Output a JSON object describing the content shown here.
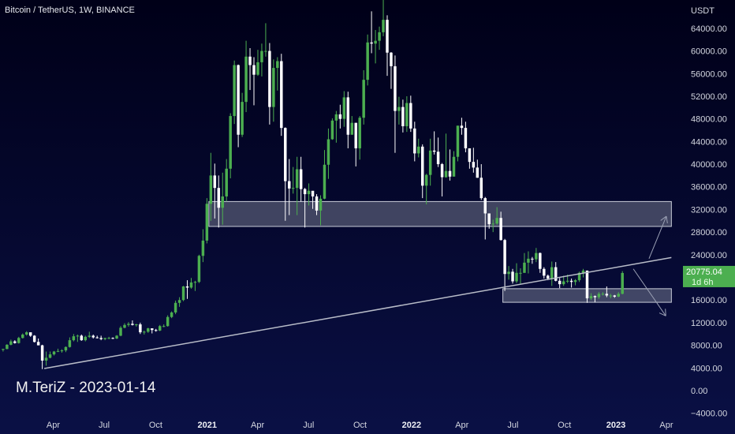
{
  "header": {
    "title": "Bitcoin / TetherUS, 1W, BINANCE"
  },
  "watermark": "M.TeriZ - 2023-01-14",
  "colors": {
    "up": "#4caf50",
    "down": "#ffffff",
    "background": "#060a2c",
    "zone_fill": "#8a8ea0",
    "line": "#b8bcc8"
  },
  "chart_data": {
    "type": "candlestick",
    "y_axis": {
      "label": "USDT",
      "ylim": [
        -4600,
        69000
      ],
      "ticks": [
        -4000,
        0,
        4000,
        8000,
        12000,
        16000,
        20000,
        24000,
        28000,
        32000,
        36000,
        40000,
        44000,
        48000,
        52000,
        56000,
        60000,
        64000
      ],
      "tick_labels": [
        "−4000.00",
        "0.00",
        "4000.00",
        "8000.00",
        "12000.00",
        "16000.00",
        "20000.00",
        "24000.00",
        "28000.00",
        "32000.00",
        "36000.00",
        "40000.00",
        "44000.00",
        "48000.00",
        "52000.00",
        "56000.00",
        "60000.00",
        "64000.00"
      ]
    },
    "x_axis": {
      "range": [
        "2019-12-28",
        "2023-04-25"
      ],
      "ticks": [
        {
          "date": "2020-04-01",
          "label": "Apr",
          "bold": false
        },
        {
          "date": "2020-07-01",
          "label": "Jul",
          "bold": false
        },
        {
          "date": "2020-10-01",
          "label": "Oct",
          "bold": false
        },
        {
          "date": "2021-01-01",
          "label": "2021",
          "bold": true
        },
        {
          "date": "2021-04-01",
          "label": "Apr",
          "bold": false
        },
        {
          "date": "2021-07-01",
          "label": "Jul",
          "bold": false
        },
        {
          "date": "2021-10-01",
          "label": "Oct",
          "bold": false
        },
        {
          "date": "2022-01-01",
          "label": "2022",
          "bold": true
        },
        {
          "date": "2022-04-01",
          "label": "Apr",
          "bold": false
        },
        {
          "date": "2022-07-01",
          "label": "Jul",
          "bold": false
        },
        {
          "date": "2022-10-01",
          "label": "Oct",
          "bold": false
        },
        {
          "date": "2023-01-01",
          "label": "2023",
          "bold": true
        },
        {
          "date": "2023-04-01",
          "label": "Apr",
          "bold": false
        }
      ]
    },
    "last_price": {
      "value": 20775.04,
      "label": "20775.04",
      "countdown": "1d 6h"
    },
    "zones": [
      {
        "from": "2021-01-04",
        "to": "2023-04-10",
        "low": 29000,
        "high": 33400
      },
      {
        "from": "2022-06-13",
        "to": "2023-04-10",
        "low": 15600,
        "high": 18000
      }
    ],
    "trendline": {
      "from": [
        "2020-03-16",
        3900
      ],
      "to": [
        "2023-04-10",
        23500
      ]
    },
    "arrows": [
      {
        "from": [
          "2023-03-01",
          23300
        ],
        "to": [
          "2023-04-01",
          30800
        ]
      },
      {
        "from": [
          "2023-02-01",
          21500
        ],
        "to": [
          "2023-03-31",
          13200
        ]
      }
    ],
    "candles": [
      [
        "2019-12-30",
        7200,
        7400,
        6900,
        7350
      ],
      [
        "2020-01-06",
        7350,
        8200,
        7300,
        8100
      ],
      [
        "2020-01-13",
        8100,
        9000,
        8000,
        8700
      ],
      [
        "2020-01-20",
        8700,
        8900,
        8300,
        8400
      ],
      [
        "2020-01-27",
        8400,
        9500,
        8300,
        9300
      ],
      [
        "2020-02-03",
        9300,
        10100,
        9200,
        9900
      ],
      [
        "2020-02-10",
        9900,
        10500,
        9700,
        10300
      ],
      [
        "2020-02-17",
        10300,
        10200,
        9500,
        9700
      ],
      [
        "2020-02-24",
        9700,
        9800,
        8500,
        8600
      ],
      [
        "2020-03-02",
        8600,
        9200,
        8000,
        8000
      ],
      [
        "2020-03-09",
        8000,
        8100,
        3800,
        5300
      ],
      [
        "2020-03-16",
        5300,
        6900,
        4400,
        5800
      ],
      [
        "2020-03-23",
        5800,
        6900,
        5700,
        6400
      ],
      [
        "2020-03-30",
        6400,
        7000,
        6200,
        6900
      ],
      [
        "2020-04-06",
        6900,
        7400,
        6800,
        7000
      ],
      [
        "2020-04-13",
        7000,
        7300,
        6700,
        7100
      ],
      [
        "2020-04-20",
        7100,
        7800,
        6800,
        7700
      ],
      [
        "2020-04-27",
        7700,
        9400,
        7600,
        8900
      ],
      [
        "2020-05-04",
        8900,
        10000,
        8700,
        9600
      ],
      [
        "2020-05-11",
        9600,
        9900,
        8600,
        9700
      ],
      [
        "2020-05-18",
        9700,
        9900,
        8800,
        8900
      ],
      [
        "2020-05-25",
        8900,
        9700,
        8700,
        9500
      ],
      [
        "2020-06-01",
        9500,
        10400,
        9300,
        9700
      ],
      [
        "2020-06-08",
        9700,
        9900,
        9200,
        9400
      ],
      [
        "2020-06-15",
        9400,
        9700,
        9200,
        9300
      ],
      [
        "2020-06-22",
        9300,
        9700,
        8900,
        9100
      ],
      [
        "2020-06-29",
        9100,
        9300,
        8900,
        9300
      ],
      [
        "2020-07-06",
        9300,
        9500,
        9100,
        9300
      ],
      [
        "2020-07-13",
        9300,
        9400,
        9100,
        9200
      ],
      [
        "2020-07-20",
        9200,
        9800,
        9100,
        9700
      ],
      [
        "2020-07-27",
        9700,
        11400,
        9600,
        11100
      ],
      [
        "2020-08-03",
        11100,
        11900,
        11000,
        11600
      ],
      [
        "2020-08-10",
        11600,
        12100,
        11300,
        11800
      ],
      [
        "2020-08-17",
        11800,
        12400,
        11500,
        11600
      ],
      [
        "2020-08-24",
        11600,
        11800,
        11300,
        11700
      ],
      [
        "2020-08-31",
        11700,
        12000,
        10000,
        10300
      ],
      [
        "2020-09-07",
        10300,
        10600,
        9900,
        10400
      ],
      [
        "2020-09-14",
        10400,
        11100,
        10200,
        11000
      ],
      [
        "2020-09-21",
        11000,
        11000,
        10100,
        10700
      ],
      [
        "2020-09-28",
        10700,
        10900,
        10400,
        10600
      ],
      [
        "2020-10-05",
        10600,
        11600,
        10500,
        11400
      ],
      [
        "2020-10-12",
        11400,
        11700,
        11200,
        11400
      ],
      [
        "2020-10-19",
        11400,
        13300,
        11300,
        13000
      ],
      [
        "2020-10-26",
        13000,
        14000,
        12800,
        13800
      ],
      [
        "2020-11-02",
        13800,
        15900,
        13500,
        15500
      ],
      [
        "2020-11-09",
        15500,
        16500,
        14800,
        16000
      ],
      [
        "2020-11-16",
        16000,
        18500,
        15800,
        18400
      ],
      [
        "2020-11-23",
        18400,
        19500,
        16200,
        18200
      ],
      [
        "2020-11-30",
        18200,
        19900,
        18000,
        19100
      ],
      [
        "2020-12-07",
        19100,
        19400,
        17600,
        19200
      ],
      [
        "2020-12-14",
        19200,
        24000,
        19000,
        23800
      ],
      [
        "2020-12-21",
        23800,
        28500,
        22700,
        26500
      ],
      [
        "2020-12-28",
        26500,
        34000,
        26000,
        33000
      ],
      [
        "2021-01-04",
        33000,
        42000,
        30000,
        38000
      ],
      [
        "2021-01-11",
        38000,
        40100,
        30400,
        35800
      ],
      [
        "2021-01-18",
        35800,
        38000,
        28800,
        32300
      ],
      [
        "2021-01-25",
        32300,
        38500,
        29300,
        34300
      ],
      [
        "2021-02-01",
        34300,
        40900,
        33400,
        39200
      ],
      [
        "2021-02-08",
        39200,
        49000,
        37500,
        48500
      ],
      [
        "2021-02-15",
        48500,
        58300,
        47100,
        57500
      ],
      [
        "2021-02-22",
        57500,
        57600,
        43000,
        45200
      ],
      [
        "2021-03-01",
        45200,
        52600,
        44800,
        51000
      ],
      [
        "2021-03-08",
        51000,
        61800,
        49200,
        59000
      ],
      [
        "2021-03-15",
        59000,
        60500,
        53100,
        57500
      ],
      [
        "2021-03-22",
        57500,
        58900,
        50400,
        55800
      ],
      [
        "2021-03-29",
        55800,
        60200,
        55600,
        58000
      ],
      [
        "2021-04-05",
        58000,
        61300,
        55500,
        60000
      ],
      [
        "2021-04-12",
        60000,
        64900,
        59000,
        60000
      ],
      [
        "2021-04-19",
        60000,
        61400,
        47000,
        50100
      ],
      [
        "2021-04-26",
        50100,
        58500,
        47500,
        57000
      ],
      [
        "2021-05-03",
        57000,
        58900,
        53000,
        58200
      ],
      [
        "2021-05-10",
        58200,
        59500,
        45000,
        46400
      ],
      [
        "2021-05-17",
        46400,
        46500,
        30000,
        37000
      ],
      [
        "2021-05-24",
        37000,
        40900,
        31000,
        35700
      ],
      [
        "2021-05-31",
        35700,
        39500,
        34800,
        35800
      ],
      [
        "2021-06-07",
        35800,
        41300,
        31000,
        39100
      ],
      [
        "2021-06-14",
        39100,
        41300,
        33400,
        35600
      ],
      [
        "2021-06-21",
        35600,
        35800,
        28800,
        34700
      ],
      [
        "2021-06-28",
        34700,
        36600,
        32700,
        35300
      ],
      [
        "2021-07-05",
        35300,
        35100,
        32100,
        34300
      ],
      [
        "2021-07-12",
        34300,
        34700,
        31000,
        31800
      ],
      [
        "2021-07-19",
        31800,
        34500,
        29200,
        33900
      ],
      [
        "2021-07-26",
        33900,
        42500,
        33800,
        39900
      ],
      [
        "2021-08-02",
        39900,
        46300,
        37400,
        44400
      ],
      [
        "2021-08-09",
        44400,
        48100,
        44300,
        47700
      ],
      [
        "2021-08-16",
        47700,
        49400,
        43800,
        48800
      ],
      [
        "2021-08-23",
        48800,
        50500,
        46300,
        48000
      ],
      [
        "2021-08-30",
        48000,
        52900,
        46600,
        51800
      ],
      [
        "2021-09-06",
        51800,
        52800,
        42800,
        45200
      ],
      [
        "2021-09-13",
        45200,
        48500,
        45200,
        47300
      ],
      [
        "2021-09-20",
        47300,
        47300,
        39600,
        42800
      ],
      [
        "2021-09-27",
        42800,
        48500,
        40800,
        48200
      ],
      [
        "2021-10-04",
        48200,
        56600,
        47000,
        54900
      ],
      [
        "2021-10-11",
        54900,
        62900,
        53900,
        61500
      ],
      [
        "2021-10-18",
        61500,
        67000,
        59600,
        61300
      ],
      [
        "2021-10-25",
        61300,
        63700,
        57800,
        61800
      ],
      [
        "2021-11-01",
        61800,
        64300,
        60200,
        63300
      ],
      [
        "2021-11-08",
        63300,
        69000,
        62600,
        65500
      ],
      [
        "2021-11-15",
        65500,
        66300,
        55600,
        59700
      ],
      [
        "2021-11-22",
        59700,
        59800,
        53300,
        57300
      ],
      [
        "2021-11-29",
        57300,
        59200,
        42000,
        49400
      ],
      [
        "2021-12-06",
        49400,
        51900,
        47000,
        50100
      ],
      [
        "2021-12-13",
        50100,
        51400,
        45600,
        46700
      ],
      [
        "2021-12-20",
        46700,
        52000,
        45700,
        50800
      ],
      [
        "2021-12-27",
        50800,
        52100,
        45700,
        46300
      ],
      [
        "2022-01-03",
        46300,
        47500,
        40500,
        41900
      ],
      [
        "2022-01-10",
        41900,
        44500,
        41200,
        43100
      ],
      [
        "2022-01-17",
        43100,
        43500,
        34000,
        36200
      ],
      [
        "2022-01-24",
        36200,
        38300,
        32900,
        38100
      ],
      [
        "2022-01-31",
        38100,
        44500,
        36200,
        42400
      ],
      [
        "2022-02-07",
        42400,
        45800,
        41700,
        42200
      ],
      [
        "2022-02-14",
        42200,
        44700,
        39500,
        40000
      ],
      [
        "2022-02-21",
        40000,
        40200,
        34300,
        37700
      ],
      [
        "2022-02-28",
        37700,
        45400,
        37600,
        38800
      ],
      [
        "2022-03-07",
        38800,
        42600,
        37100,
        37800
      ],
      [
        "2022-03-14",
        37800,
        42300,
        38100,
        41300
      ],
      [
        "2022-03-21",
        41300,
        46800,
        40500,
        46800
      ],
      [
        "2022-03-28",
        46800,
        48200,
        45200,
        46400
      ],
      [
        "2022-04-04",
        46400,
        47500,
        42100,
        42800
      ],
      [
        "2022-04-11",
        42800,
        42400,
        39200,
        40400
      ],
      [
        "2022-04-18",
        40400,
        42900,
        38500,
        39400
      ],
      [
        "2022-04-25",
        39400,
        40800,
        37600,
        37600
      ],
      [
        "2022-05-02",
        37600,
        40000,
        33700,
        34000
      ],
      [
        "2022-05-09",
        34000,
        34200,
        26700,
        31300
      ],
      [
        "2022-05-16",
        31300,
        31100,
        28600,
        29400
      ],
      [
        "2022-05-23",
        29400,
        30200,
        28000,
        29500
      ],
      [
        "2022-05-30",
        29500,
        32400,
        29300,
        30500
      ],
      [
        "2022-06-06",
        30500,
        31600,
        26500,
        26600
      ],
      [
        "2022-06-13",
        26600,
        26800,
        17600,
        20600
      ],
      [
        "2022-06-20",
        20600,
        22000,
        19600,
        21000
      ],
      [
        "2022-06-27",
        21000,
        21500,
        18900,
        19300
      ],
      [
        "2022-07-04",
        19300,
        22500,
        19000,
        20800
      ],
      [
        "2022-07-11",
        20800,
        21600,
        18900,
        20800
      ],
      [
        "2022-07-18",
        20800,
        24300,
        20800,
        22600
      ],
      [
        "2022-07-25",
        22600,
        24600,
        20700,
        23300
      ],
      [
        "2022-08-01",
        23300,
        23600,
        22400,
        23200
      ],
      [
        "2022-08-08",
        23200,
        25200,
        22700,
        24300
      ],
      [
        "2022-08-15",
        24300,
        24400,
        20800,
        21500
      ],
      [
        "2022-08-22",
        21500,
        21800,
        19800,
        20300
      ],
      [
        "2022-08-29",
        20300,
        20500,
        19500,
        19800
      ],
      [
        "2022-09-05",
        19800,
        22800,
        18500,
        21800
      ],
      [
        "2022-09-12",
        21800,
        22700,
        19300,
        19400
      ],
      [
        "2022-09-19",
        19400,
        19900,
        18100,
        18800
      ],
      [
        "2022-09-26",
        18800,
        20300,
        18500,
        19300
      ],
      [
        "2022-10-03",
        19300,
        20500,
        19000,
        19400
      ],
      [
        "2022-10-10",
        19400,
        19800,
        18200,
        19200
      ],
      [
        "2022-10-17",
        19200,
        19700,
        18600,
        19500
      ],
      [
        "2022-10-24",
        19500,
        21000,
        19200,
        20800
      ],
      [
        "2022-10-31",
        20800,
        21500,
        20000,
        21200
      ],
      [
        "2022-11-07",
        21200,
        21200,
        15500,
        16300
      ],
      [
        "2022-11-14",
        16300,
        17200,
        16000,
        16700
      ],
      [
        "2022-11-21",
        16700,
        16800,
        15600,
        16500
      ],
      [
        "2022-11-28",
        16500,
        17400,
        16200,
        17100
      ],
      [
        "2022-12-05",
        17100,
        17400,
        16800,
        17100
      ],
      [
        "2022-12-12",
        17100,
        18400,
        16500,
        16800
      ],
      [
        "2022-12-19",
        16800,
        17100,
        16300,
        16800
      ],
      [
        "2022-12-26",
        16800,
        16900,
        16400,
        16600
      ],
      [
        "2023-01-02",
        16600,
        17400,
        16500,
        17100
      ],
      [
        "2023-01-09",
        17100,
        21100,
        17000,
        20775
      ]
    ]
  }
}
